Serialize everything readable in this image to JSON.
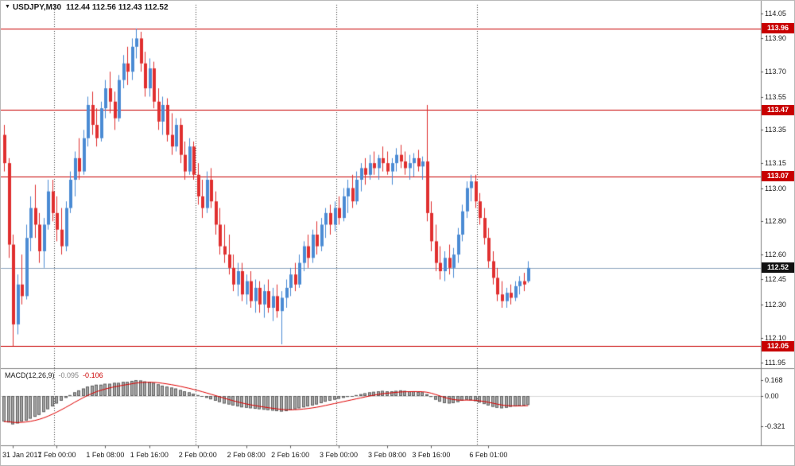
{
  "header": {
    "marker_icon": "▼",
    "symbol_period": "USDJPY,M30",
    "ohlc": "112.44 112.56 112.43 112.52"
  },
  "macd_pane": {
    "label": "MACD(12,26,9)",
    "macd_value": "-0.095",
    "signal_value": "-0.106"
  },
  "chart_data": {
    "type": "candlestick",
    "symbol": "USDJPY",
    "timeframe": "M30",
    "price_axis": {
      "labels": [
        "114.05",
        "113.90",
        "113.70",
        "113.55",
        "113.35",
        "113.15",
        "113.00",
        "112.80",
        "112.60",
        "112.45",
        "112.30",
        "112.10",
        "111.95"
      ],
      "range": [
        111.95,
        114.05
      ]
    },
    "time_ticks": [
      {
        "i": 2,
        "label": "31 Jan 2017"
      },
      {
        "i": 12,
        "label": "1 Feb 00:00"
      },
      {
        "i": 23,
        "label": "1 Feb 08:00"
      },
      {
        "i": 33,
        "label": "1 Feb 16:00"
      },
      {
        "i": 44,
        "label": "2 Feb 00:00"
      },
      {
        "i": 55,
        "label": "2 Feb 08:00"
      },
      {
        "i": 65,
        "label": "2 Feb 16:00"
      },
      {
        "i": 76,
        "label": "3 Feb 00:00"
      },
      {
        "i": 87,
        "label": "3 Feb 08:00"
      },
      {
        "i": 97,
        "label": "3 Feb 16:00"
      },
      {
        "i": 110,
        "label": "6 Feb 01:00"
      }
    ],
    "day_separator_indices": [
      12,
      44,
      76,
      108
    ],
    "hlines": [
      {
        "price": 113.96,
        "label": "113.96"
      },
      {
        "price": 113.47,
        "label": "113.47"
      },
      {
        "price": 113.07,
        "label": "113.07"
      },
      {
        "price": 112.05,
        "label": "112.05"
      }
    ],
    "current_price": {
      "price": 112.52,
      "label": "112.52"
    },
    "candles": [
      [
        113.32,
        113.38,
        113.1,
        113.15
      ],
      [
        113.15,
        113.18,
        112.58,
        112.66
      ],
      [
        112.66,
        112.72,
        112.05,
        112.18
      ],
      [
        112.18,
        112.48,
        112.12,
        112.42
      ],
      [
        112.42,
        112.6,
        112.3,
        112.35
      ],
      [
        112.35,
        112.78,
        112.33,
        112.7
      ],
      [
        112.7,
        112.95,
        112.62,
        112.88
      ],
      [
        112.88,
        113.02,
        112.7,
        112.78
      ],
      [
        112.78,
        112.85,
        112.55,
        112.62
      ],
      [
        112.62,
        112.82,
        112.52,
        112.78
      ],
      [
        112.78,
        113.05,
        112.75,
        112.98
      ],
      [
        112.98,
        113.05,
        112.8,
        112.85
      ],
      [
        112.85,
        112.95,
        112.68,
        112.75
      ],
      [
        112.75,
        112.88,
        112.6,
        112.65
      ],
      [
        112.65,
        112.92,
        112.62,
        112.88
      ],
      [
        112.88,
        113.1,
        112.85,
        113.05
      ],
      [
        113.05,
        113.22,
        112.95,
        113.18
      ],
      [
        113.18,
        113.3,
        113.05,
        113.1
      ],
      [
        113.1,
        113.35,
        113.08,
        113.3
      ],
      [
        113.3,
        113.55,
        113.25,
        113.5
      ],
      [
        113.5,
        113.58,
        113.32,
        113.38
      ],
      [
        113.38,
        113.48,
        113.25,
        113.3
      ],
      [
        113.3,
        113.52,
        113.28,
        113.48
      ],
      [
        113.48,
        113.65,
        113.42,
        113.6
      ],
      [
        113.6,
        113.7,
        113.45,
        113.52
      ],
      [
        113.52,
        113.58,
        113.35,
        113.42
      ],
      [
        113.42,
        113.68,
        113.4,
        113.65
      ],
      [
        113.65,
        113.8,
        113.6,
        113.75
      ],
      [
        113.75,
        113.85,
        113.62,
        113.7
      ],
      [
        113.7,
        113.9,
        113.65,
        113.85
      ],
      [
        113.85,
        113.96,
        113.78,
        113.9
      ],
      [
        113.9,
        113.94,
        113.7,
        113.75
      ],
      [
        113.75,
        113.82,
        113.55,
        113.6
      ],
      [
        113.6,
        113.78,
        113.55,
        113.72
      ],
      [
        113.72,
        113.76,
        113.48,
        113.52
      ],
      [
        113.52,
        113.6,
        113.35,
        113.4
      ],
      [
        113.4,
        113.55,
        113.32,
        113.5
      ],
      [
        113.5,
        113.54,
        113.28,
        113.32
      ],
      [
        113.32,
        113.45,
        113.2,
        113.25
      ],
      [
        113.25,
        113.42,
        113.22,
        113.38
      ],
      [
        113.38,
        113.42,
        113.15,
        113.2
      ],
      [
        113.2,
        113.28,
        113.05,
        113.1
      ],
      [
        113.1,
        113.3,
        113.08,
        113.25
      ],
      [
        113.25,
        113.28,
        113.05,
        113.08
      ],
      [
        113.08,
        113.15,
        112.9,
        112.95
      ],
      [
        112.95,
        113.05,
        112.82,
        112.88
      ],
      [
        112.88,
        113.1,
        112.85,
        113.05
      ],
      [
        113.05,
        113.12,
        112.88,
        112.92
      ],
      [
        112.92,
        112.98,
        112.72,
        112.78
      ],
      [
        112.78,
        112.88,
        112.6,
        112.65
      ],
      [
        112.65,
        112.78,
        112.55,
        112.6
      ],
      [
        112.6,
        112.72,
        112.48,
        112.52
      ],
      [
        112.52,
        112.6,
        112.38,
        112.42
      ],
      [
        112.42,
        112.55,
        112.35,
        112.5
      ],
      [
        112.5,
        112.55,
        112.32,
        112.36
      ],
      [
        112.36,
        112.48,
        112.3,
        112.44
      ],
      [
        112.44,
        112.5,
        112.28,
        112.32
      ],
      [
        112.32,
        112.45,
        112.25,
        112.4
      ],
      [
        112.4,
        112.44,
        112.25,
        112.3
      ],
      [
        112.3,
        112.42,
        112.22,
        112.38
      ],
      [
        112.38,
        112.45,
        112.25,
        112.28
      ],
      [
        112.28,
        112.4,
        112.2,
        112.35
      ],
      [
        112.35,
        112.42,
        112.22,
        112.26
      ],
      [
        112.26,
        112.38,
        112.06,
        112.34
      ],
      [
        112.34,
        112.45,
        112.28,
        112.4
      ],
      [
        112.4,
        112.52,
        112.35,
        112.48
      ],
      [
        112.48,
        112.55,
        112.38,
        112.42
      ],
      [
        112.42,
        112.6,
        112.4,
        112.55
      ],
      [
        112.55,
        112.68,
        112.5,
        112.65
      ],
      [
        112.65,
        112.72,
        112.52,
        112.58
      ],
      [
        112.58,
        112.75,
        112.55,
        112.72
      ],
      [
        112.72,
        112.8,
        112.6,
        112.65
      ],
      [
        112.65,
        112.82,
        112.62,
        112.78
      ],
      [
        112.78,
        112.88,
        112.7,
        112.85
      ],
      [
        112.85,
        112.9,
        112.72,
        112.78
      ],
      [
        112.78,
        112.92,
        112.74,
        112.88
      ],
      [
        112.88,
        112.95,
        112.78,
        112.82
      ],
      [
        112.82,
        113.0,
        112.8,
        112.95
      ],
      [
        112.95,
        113.05,
        112.85,
        113.0
      ],
      [
        113.0,
        113.08,
        112.88,
        112.92
      ],
      [
        112.92,
        113.1,
        112.9,
        113.05
      ],
      [
        113.05,
        113.15,
        112.98,
        113.12
      ],
      [
        113.12,
        113.18,
        113.02,
        113.08
      ],
      [
        113.08,
        113.2,
        113.05,
        113.15
      ],
      [
        113.15,
        113.22,
        113.08,
        113.12
      ],
      [
        113.12,
        113.2,
        113.05,
        113.18
      ],
      [
        113.18,
        113.25,
        113.1,
        113.15
      ],
      [
        113.15,
        113.22,
        113.08,
        113.1
      ],
      [
        113.1,
        113.18,
        113.02,
        113.15
      ],
      [
        113.15,
        113.24,
        113.1,
        113.2
      ],
      [
        113.2,
        113.26,
        113.12,
        113.16
      ],
      [
        113.16,
        113.22,
        113.08,
        113.12
      ],
      [
        113.12,
        113.2,
        113.05,
        113.15
      ],
      [
        113.15,
        113.21,
        113.07,
        113.18
      ],
      [
        113.18,
        113.23,
        113.1,
        113.13
      ],
      [
        113.13,
        113.19,
        113.05,
        113.16
      ],
      [
        113.16,
        113.5,
        112.8,
        112.85
      ],
      [
        112.85,
        112.92,
        112.62,
        112.68
      ],
      [
        112.68,
        112.78,
        112.5,
        112.55
      ],
      [
        112.55,
        112.65,
        112.45,
        112.5
      ],
      [
        112.5,
        112.62,
        112.44,
        112.58
      ],
      [
        112.58,
        112.66,
        112.48,
        112.52
      ],
      [
        112.52,
        112.64,
        112.46,
        112.6
      ],
      [
        112.6,
        112.76,
        112.55,
        112.72
      ],
      [
        112.72,
        112.9,
        112.68,
        112.86
      ],
      [
        112.86,
        113.04,
        112.82,
        113.0
      ],
      [
        113.0,
        113.08,
        112.92,
        113.04
      ],
      [
        113.04,
        113.08,
        112.88,
        112.92
      ],
      [
        112.92,
        112.97,
        112.78,
        112.82
      ],
      [
        112.82,
        112.88,
        112.66,
        112.7
      ],
      [
        112.7,
        112.76,
        112.52,
        112.56
      ],
      [
        112.56,
        112.62,
        112.42,
        112.46
      ],
      [
        112.46,
        112.52,
        112.32,
        112.36
      ],
      [
        112.36,
        112.44,
        112.28,
        112.32
      ],
      [
        112.32,
        112.4,
        112.28,
        112.37
      ],
      [
        112.37,
        112.42,
        112.3,
        112.34
      ],
      [
        112.34,
        112.44,
        112.32,
        112.41
      ],
      [
        112.41,
        112.47,
        112.36,
        112.44
      ],
      [
        112.44,
        112.49,
        112.38,
        112.42
      ],
      [
        112.44,
        112.56,
        112.43,
        112.52
      ]
    ],
    "macd": {
      "type": "bar",
      "axis_labels": [
        "0.168",
        "0.00",
        "-0.321"
      ],
      "range": [
        -0.321,
        0.168
      ],
      "last_macd": -0.095,
      "last_signal": -0.106,
      "values": [
        -0.27,
        -0.28,
        -0.3,
        -0.29,
        -0.27,
        -0.26,
        -0.24,
        -0.22,
        -0.2,
        -0.17,
        -0.14,
        -0.11,
        -0.08,
        -0.05,
        -0.02,
        0.01,
        0.04,
        0.06,
        0.08,
        0.1,
        0.11,
        0.12,
        0.12,
        0.13,
        0.13,
        0.14,
        0.14,
        0.15,
        0.15,
        0.16,
        0.168,
        0.165,
        0.155,
        0.15,
        0.14,
        0.125,
        0.11,
        0.1,
        0.09,
        0.08,
        0.065,
        0.05,
        0.04,
        0.025,
        0.01,
        -0.005,
        -0.02,
        -0.035,
        -0.05,
        -0.065,
        -0.08,
        -0.09,
        -0.1,
        -0.11,
        -0.12,
        -0.125,
        -0.13,
        -0.135,
        -0.14,
        -0.145,
        -0.15,
        -0.155,
        -0.16,
        -0.165,
        -0.16,
        -0.15,
        -0.14,
        -0.13,
        -0.12,
        -0.11,
        -0.1,
        -0.09,
        -0.075,
        -0.06,
        -0.05,
        -0.04,
        -0.03,
        -0.02,
        -0.01,
        0.0,
        0.01,
        0.02,
        0.03,
        0.04,
        0.045,
        0.05,
        0.055,
        0.05,
        0.05,
        0.055,
        0.06,
        0.055,
        0.05,
        0.05,
        0.045,
        0.04,
        0.02,
        -0.01,
        -0.04,
        -0.06,
        -0.075,
        -0.08,
        -0.075,
        -0.065,
        -0.05,
        -0.04,
        -0.045,
        -0.055,
        -0.07,
        -0.085,
        -0.1,
        -0.115,
        -0.125,
        -0.13,
        -0.125,
        -0.115,
        -0.11,
        -0.105,
        -0.1,
        -0.095
      ]
    },
    "colors": {
      "bull": "#4b8bd4",
      "bear": "#e03030",
      "hline": "#c80000",
      "hline_flag_bg": "#c80000",
      "current_line": "#8fa8bf",
      "current_flag_bg": "#111111",
      "histogram": "#a6a6a6",
      "histogram_border": "#5f5f5f",
      "signal": "#e00000",
      "separator": "#808080",
      "day_separator": "#3a3a3a"
    }
  }
}
